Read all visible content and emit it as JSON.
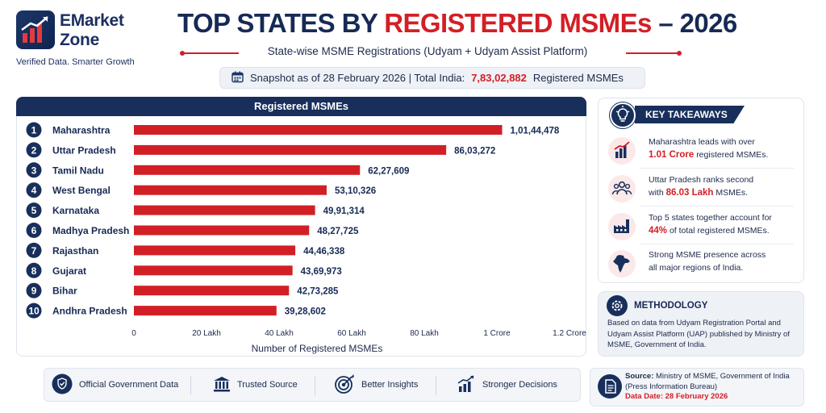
{
  "brand": {
    "name_line1": "EMarket",
    "name_line2": "Zone",
    "tagline": "Verified Data. Smarter Growth"
  },
  "header": {
    "title_part1": "TOP STATES BY ",
    "title_part2": "REGISTERED MSMEs",
    "title_part3": " – 2026",
    "subtitle": "State-wise MSME Registrations (Udyam + Udyam Assist Platform)",
    "snapshot_prefix": "Snapshot as of 28 February 2026 | Total India:",
    "snapshot_total": "7,83,02,882",
    "snapshot_suffix": "Registered MSMEs"
  },
  "chart_data": {
    "type": "bar",
    "orientation": "horizontal",
    "title": "Registered MSMEs",
    "xlabel": "Number of Registered MSMEs",
    "ylabel": "",
    "xlim": [
      0,
      12000000
    ],
    "x_tick_values": [
      0,
      2000000,
      4000000,
      6000000,
      8000000,
      10000000,
      12000000
    ],
    "x_tick_labels": [
      "0",
      "20 Lakh",
      "40 Lakh",
      "60 Lakh",
      "80 Lakh",
      "1 Crore",
      "1.2 Crore"
    ],
    "ranks": [
      "1",
      "2",
      "3",
      "4",
      "5",
      "6",
      "7",
      "8",
      "9",
      "10"
    ],
    "categories": [
      "Maharashtra",
      "Uttar Pradesh",
      "Tamil Nadu",
      "West Bengal",
      "Karnataka",
      "Madhya Pradesh",
      "Rajasthan",
      "Gujarat",
      "Bihar",
      "Andhra Pradesh"
    ],
    "values": [
      10144478,
      8603272,
      6227609,
      5310326,
      4991314,
      4827725,
      4446338,
      4369973,
      4273285,
      3928602
    ],
    "value_labels": [
      "1,01,44,478",
      "86,03,272",
      "62,27,609",
      "53,10,326",
      "49,91,314",
      "48,27,725",
      "44,46,338",
      "43,69,973",
      "42,73,285",
      "39,28,602"
    ],
    "grid": false,
    "bar_color": "#d21f26"
  },
  "takeaways": {
    "heading": "KEY TAKEAWAYS",
    "items": [
      {
        "icon": "bar-chart-icon",
        "pre": "Maharashtra leads with over",
        "highlight": "1.01 Crore",
        "post": "registered MSMEs."
      },
      {
        "icon": "people-icon",
        "pre": "Uttar Pradesh ranks second",
        "highlight_pre": "with",
        "highlight": "86.03 Lakh",
        "post": "MSMEs."
      },
      {
        "icon": "factory-icon",
        "pre": "Top 5 states together account for",
        "highlight": "44%",
        "post": "of total registered MSMEs."
      },
      {
        "icon": "india-map-icon",
        "pre": "Strong MSME presence across",
        "highlight": "",
        "post": "all major regions of India."
      }
    ]
  },
  "methodology": {
    "heading": "METHODOLOGY",
    "text": "Based on data from Udyam Registration Portal and Udyam Assist Platform (UAP) published by Ministry of MSME, Government of India."
  },
  "footer": {
    "badges": [
      {
        "icon": "shield-check-icon",
        "label": "Official Government Data"
      },
      {
        "icon": "institution-icon",
        "label": "Trusted Source"
      },
      {
        "icon": "target-icon",
        "label": "Better Insights"
      },
      {
        "icon": "growth-chart-icon",
        "label": "Stronger Decisions"
      }
    ],
    "source_label": "Source:",
    "source_text": "Ministry of MSME, Government of India (Press Information Bureau)",
    "date_text": "Data Date: 28 February 2026"
  },
  "colors": {
    "navy": "#182f5c",
    "accent_red": "#d21f26"
  }
}
